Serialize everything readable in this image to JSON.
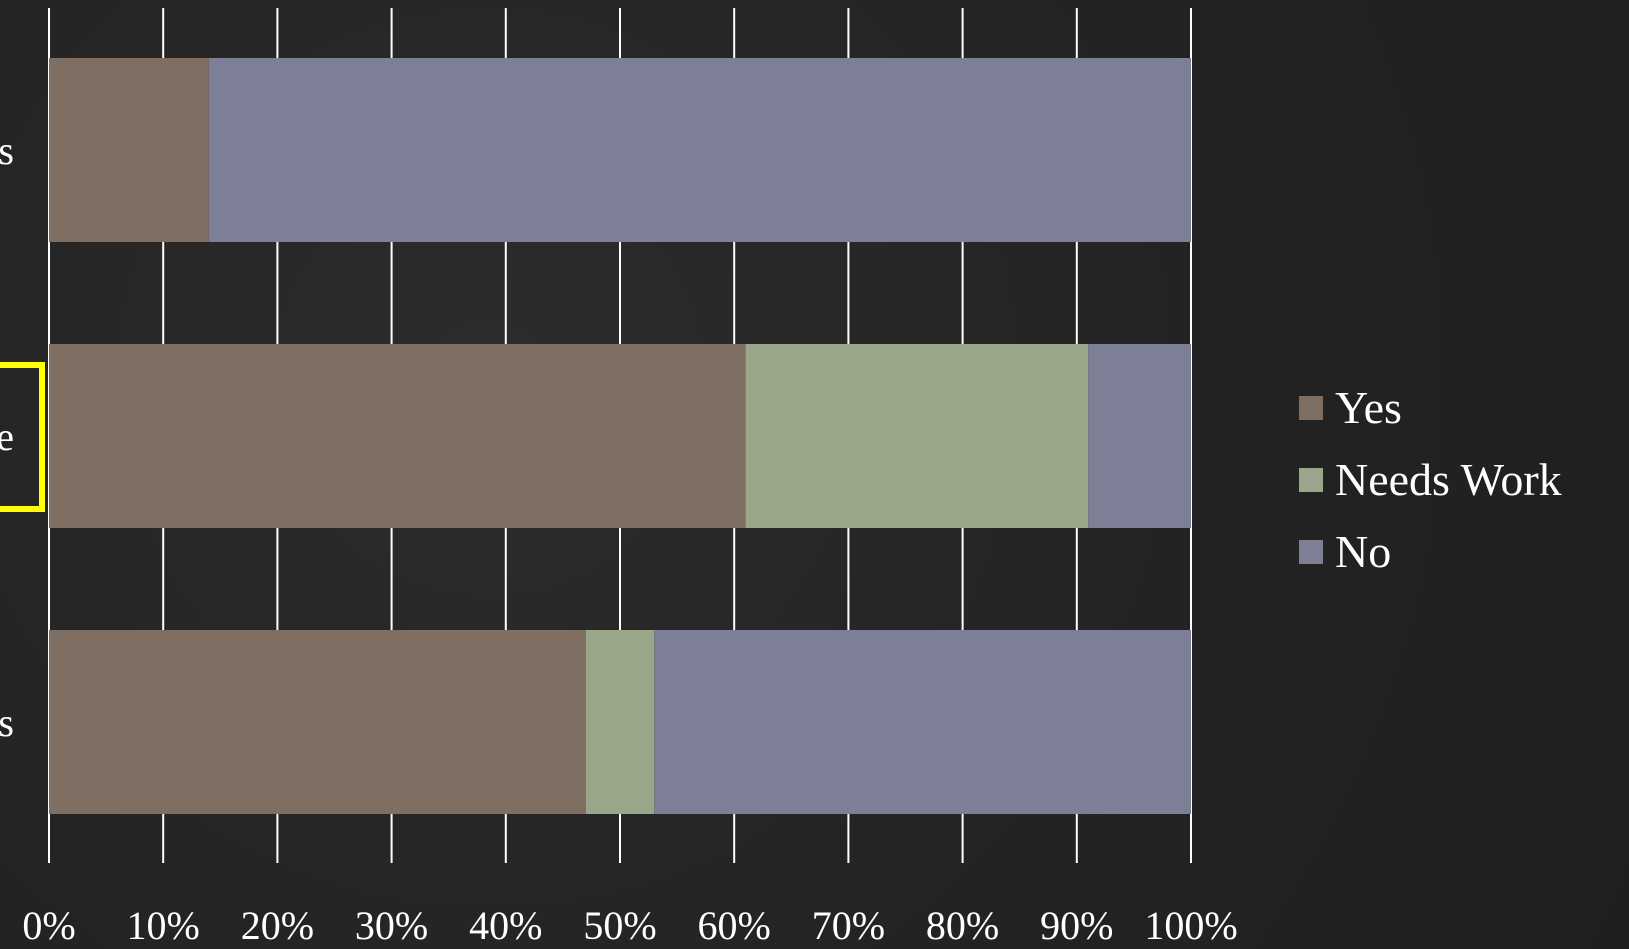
{
  "chart_data": {
    "type": "bar",
    "orientation": "horizontal",
    "stacked": true,
    "percent_stacked": true,
    "categories": [
      "s",
      "e",
      "s"
    ],
    "series": [
      {
        "name": "Yes",
        "color": "#7f6e62",
        "values": [
          14,
          61,
          47
        ]
      },
      {
        "name": "Needs Work",
        "color": "#9aa68a",
        "values": [
          0,
          30,
          6
        ]
      },
      {
        "name": "No",
        "color": "#7c7f96",
        "values": [
          86,
          9,
          47
        ]
      }
    ],
    "xlim": [
      0,
      100
    ],
    "xticks": [
      "0%",
      "10%",
      "20%",
      "30%",
      "40%",
      "50%",
      "60%",
      "70%",
      "80%",
      "90%",
      "100%"
    ],
    "grid": true,
    "legend_position": "right",
    "highlighted_category_index": 1,
    "highlight_color": "#ffff00",
    "title": "",
    "xlabel": "",
    "ylabel": ""
  }
}
